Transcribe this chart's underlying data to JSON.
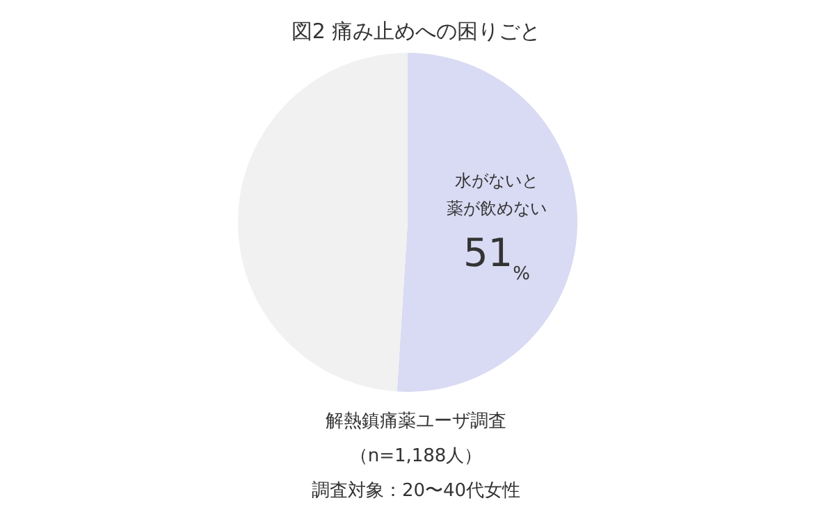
{
  "chart_data": {
    "type": "pie",
    "title": "図2 痛み止めへの困りごと",
    "categories": [
      "水がないと薬が飲めない",
      null
    ],
    "values": [
      51,
      49
    ],
    "colors": [
      "#d9daf3",
      "#f1f1f1"
    ],
    "value_labels": [
      "51%",
      null
    ],
    "annotations": [
      "解熱鎮痛薬ユーザ調査",
      "（n=1,188人）",
      "調査対象：20〜40代女性"
    ]
  }
}
